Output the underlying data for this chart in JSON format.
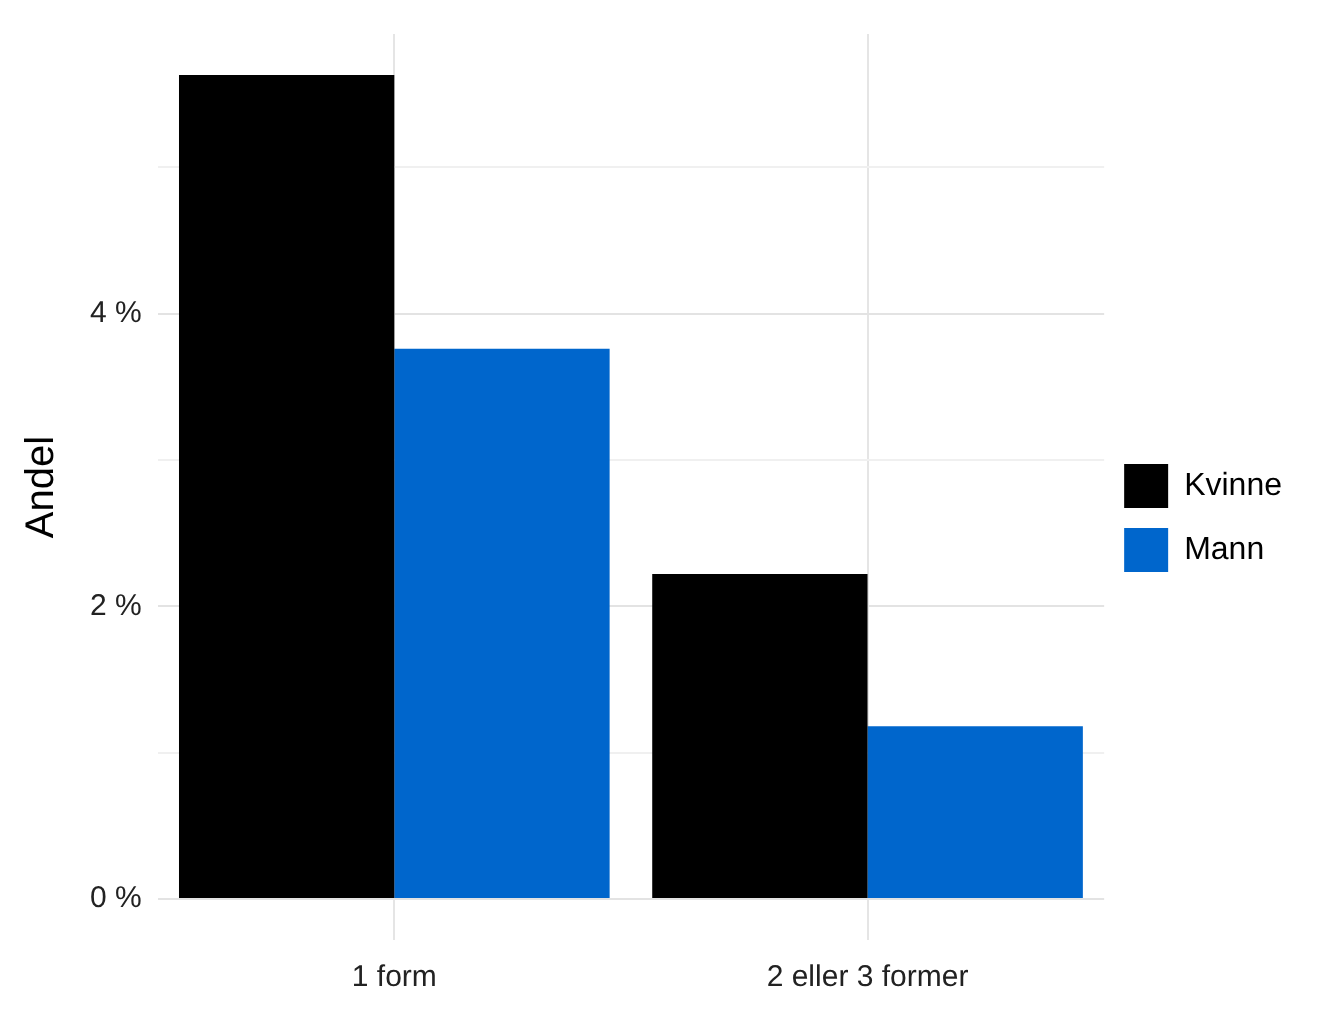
{
  "chart_data": {
    "type": "bar",
    "ylabel": "Andel",
    "categories": [
      "1 form",
      "2 eller 3 former"
    ],
    "series": [
      {
        "name": "Kvinne",
        "color": "#000000",
        "values": [
          5.63,
          2.22
        ]
      },
      {
        "name": "Mann",
        "color": "#0066cc",
        "values": [
          3.76,
          1.18
        ]
      }
    ],
    "ylim": [
      -0.28,
      5.91
    ],
    "yticks": [
      {
        "value": 0,
        "label": "0 %"
      },
      {
        "value": 1,
        "label": null
      },
      {
        "value": 2,
        "label": "2 %"
      },
      {
        "value": 3,
        "label": null
      },
      {
        "value": 4,
        "label": "4 %"
      },
      {
        "value": 5,
        "label": null
      }
    ],
    "grid": true,
    "legend": "right"
  }
}
